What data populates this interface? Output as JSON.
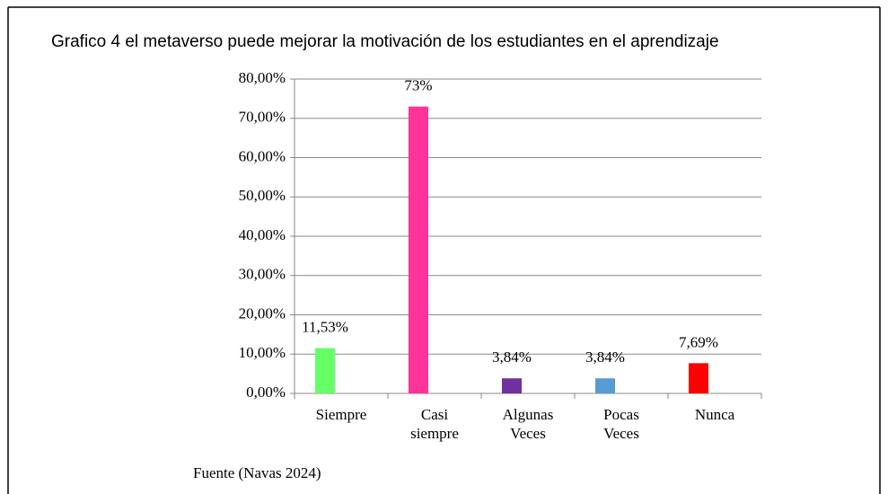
{
  "chart_data": {
    "type": "bar",
    "title": "Grafico 4 el metaverso puede mejorar la motivación de los estudiantes en el aprendizaje",
    "categories": [
      "Siempre",
      "Casi siempre",
      "Algunas Veces",
      "Pocas Veces",
      "Nunca"
    ],
    "values": [
      11.53,
      73,
      3.84,
      3.84,
      7.69
    ],
    "value_labels": [
      "11,53%",
      "73%",
      "3,84%",
      "3,84%",
      "7,69%"
    ],
    "colors": [
      "#66ff66",
      "#ff3399",
      "#7030a0",
      "#5b9bd5",
      "#ff0000"
    ],
    "ylim": [
      0,
      80
    ],
    "yticks": [
      {
        "value": 0,
        "label": "0,00%"
      },
      {
        "value": 10,
        "label": "10,00%"
      },
      {
        "value": 20,
        "label": "20,00%"
      },
      {
        "value": 30,
        "label": "30,00%"
      },
      {
        "value": 40,
        "label": "40,00%"
      },
      {
        "value": 50,
        "label": "50,00%"
      },
      {
        "value": 60,
        "label": "60,00%"
      },
      {
        "value": 70,
        "label": "70,00%"
      },
      {
        "value": 80,
        "label": "80,00%"
      }
    ],
    "grid": true,
    "source": "Fuente (Navas 2024)"
  }
}
